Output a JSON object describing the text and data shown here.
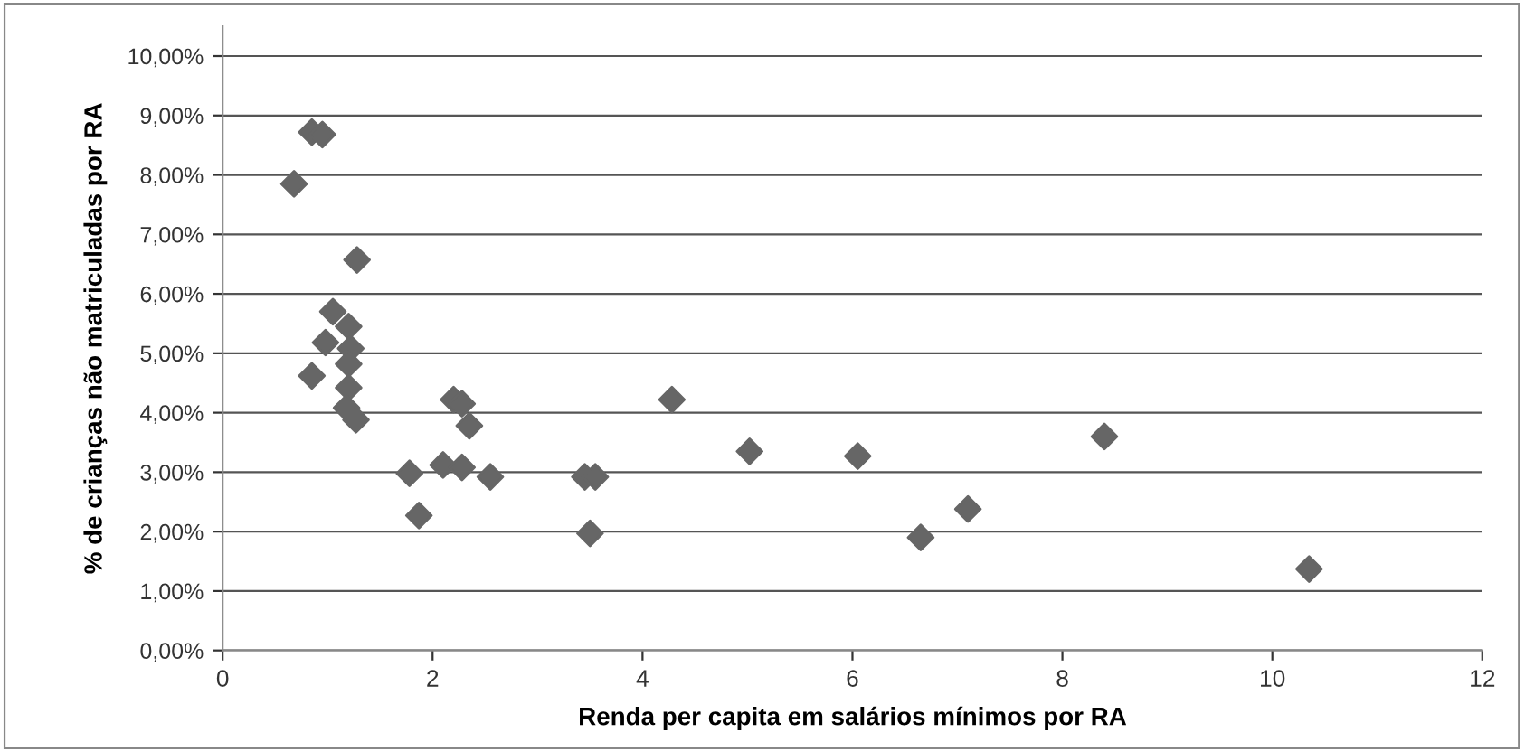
{
  "chart_data": {
    "type": "scatter",
    "xlabel": "Renda per capita em salários mínimos por RA",
    "ylabel": "% de crianças não matriculadas por RA",
    "series": [
      {
        "color": "#666666",
        "marker": "diamond",
        "x": [
          0.68,
          0.85,
          0.95,
          1.28,
          1.05,
          1.2,
          0.98,
          1.22,
          1.2,
          0.85,
          1.2,
          1.18,
          1.27,
          2.2,
          2.28,
          2.35,
          1.78,
          2.1,
          2.28,
          2.55,
          1.87,
          3.45,
          3.55,
          3.5,
          4.28,
          5.02,
          6.05,
          6.65,
          7.1,
          8.4,
          10.35
        ],
        "values": [
          7.85,
          8.72,
          8.68,
          6.57,
          5.7,
          5.45,
          5.18,
          5.08,
          4.82,
          4.62,
          4.42,
          4.08,
          3.88,
          4.22,
          4.15,
          3.78,
          2.98,
          3.12,
          3.08,
          2.92,
          2.27,
          2.92,
          2.92,
          1.97,
          4.22,
          3.35,
          3.27,
          1.9,
          2.38,
          3.6,
          1.37
        ]
      }
    ],
    "xlim": [
      0,
      12
    ],
    "xticks": [
      0,
      2,
      4,
      6,
      8,
      10,
      12
    ],
    "ylim": [
      0,
      10.5
    ],
    "yticks": [
      {
        "value": 0,
        "label": "0,00%"
      },
      {
        "value": 1,
        "label": "1,00%"
      },
      {
        "value": 2,
        "label": "2,00%"
      },
      {
        "value": 3,
        "label": "3,00%"
      },
      {
        "value": 4,
        "label": "4,00%"
      },
      {
        "value": 5,
        "label": "5,00%"
      },
      {
        "value": 6,
        "label": "6,00%"
      },
      {
        "value": 7,
        "label": "7,00%"
      },
      {
        "value": 8,
        "label": "8,00%"
      },
      {
        "value": 9,
        "label": "9,00%"
      },
      {
        "value": 10,
        "label": "10,00%"
      }
    ],
    "grid": "y",
    "legend": false
  }
}
